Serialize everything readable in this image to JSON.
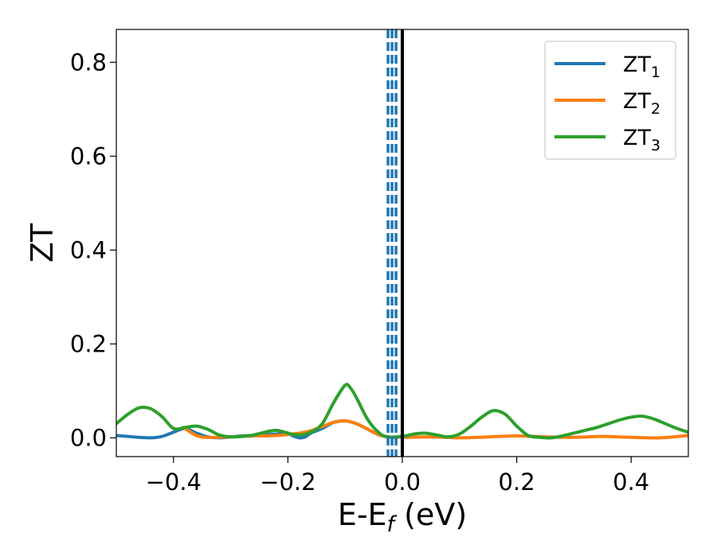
{
  "chart_data": {
    "type": "line",
    "xlabel": "E-E",
    "xlabel_sub": "f",
    "xlabel_unit": " (eV)",
    "ylabel": "ZT",
    "xlim": [
      -0.5,
      0.5
    ],
    "ylim": [
      -0.04,
      0.87
    ],
    "x_ticks": [
      -0.4,
      -0.2,
      0.0,
      0.2,
      0.4
    ],
    "x_tick_labels": [
      "−0.4",
      "−0.2",
      "0.0",
      "0.2",
      "0.4"
    ],
    "y_ticks": [
      0.0,
      0.2,
      0.4,
      0.6,
      0.8
    ],
    "y_tick_labels": [
      "0.0",
      "0.2",
      "0.4",
      "0.6",
      "0.8"
    ],
    "grid": false,
    "legend_position": "top-right",
    "legend": [
      {
        "base": "ZT",
        "sub": "1",
        "color": "#1f77b4"
      },
      {
        "base": "ZT",
        "sub": "2",
        "color": "#ff7f0e"
      },
      {
        "base": "ZT",
        "sub": "3",
        "color": "#2ca02c"
      }
    ],
    "vertical_lines": [
      {
        "x": -0.025,
        "style": "dashed",
        "color": "#1f77b4"
      },
      {
        "x": -0.018,
        "style": "dashed",
        "color": "#1f77b4"
      },
      {
        "x": -0.011,
        "style": "dashed",
        "color": "#1f77b4"
      },
      {
        "x": 0.0,
        "style": "solid",
        "color": "#000000"
      }
    ],
    "series": [
      {
        "color": "#1f77b4",
        "points": [
          [
            -0.5,
            0.005
          ],
          [
            -0.48,
            0.003
          ],
          [
            -0.46,
            0.001
          ],
          [
            -0.44,
            0.0
          ],
          [
            -0.42,
            0.003
          ],
          [
            -0.4,
            0.012
          ],
          [
            -0.38,
            0.02
          ],
          [
            -0.36,
            0.01
          ],
          [
            -0.34,
            0.002
          ],
          [
            -0.32,
            0.0
          ],
          [
            -0.3,
            0.002
          ],
          [
            -0.28,
            0.004
          ],
          [
            -0.26,
            0.005
          ],
          [
            -0.24,
            0.006
          ],
          [
            -0.22,
            0.008
          ],
          [
            -0.2,
            0.008
          ],
          [
            -0.19,
            0.004
          ],
          [
            -0.18,
            0.0
          ],
          [
            -0.17,
            0.002
          ],
          [
            -0.16,
            0.01
          ],
          [
            -0.14,
            0.02
          ],
          [
            -0.12,
            0.033
          ],
          [
            -0.1,
            0.036
          ],
          [
            -0.08,
            0.03
          ],
          [
            -0.06,
            0.018
          ],
          [
            -0.04,
            0.006
          ],
          [
            -0.025,
            0.002
          ]
        ]
      },
      {
        "color": "#ff7f0e",
        "points": [
          [
            -0.38,
            0.02
          ],
          [
            -0.36,
            0.005
          ],
          [
            -0.34,
            0.001
          ],
          [
            -0.3,
            0.002
          ],
          [
            -0.26,
            0.004
          ],
          [
            -0.22,
            0.005
          ],
          [
            -0.18,
            0.01
          ],
          [
            -0.16,
            0.015
          ],
          [
            -0.14,
            0.024
          ],
          [
            -0.12,
            0.033
          ],
          [
            -0.1,
            0.036
          ],
          [
            -0.08,
            0.03
          ],
          [
            -0.06,
            0.018
          ],
          [
            -0.04,
            0.006
          ],
          [
            -0.025,
            0.002
          ],
          [
            0.0,
            0.001
          ],
          [
            0.05,
            0.002
          ],
          [
            0.1,
            0.0
          ],
          [
            0.15,
            0.002
          ],
          [
            0.2,
            0.004
          ],
          [
            0.25,
            0.002
          ],
          [
            0.3,
            0.001
          ],
          [
            0.35,
            0.003
          ],
          [
            0.4,
            0.001
          ],
          [
            0.45,
            0.0
          ],
          [
            0.5,
            0.005
          ]
        ]
      },
      {
        "color": "#2ca02c",
        "points": [
          [
            -0.5,
            0.03
          ],
          [
            -0.48,
            0.05
          ],
          [
            -0.46,
            0.064
          ],
          [
            -0.44,
            0.062
          ],
          [
            -0.42,
            0.045
          ],
          [
            -0.4,
            0.02
          ],
          [
            -0.38,
            0.022
          ],
          [
            -0.36,
            0.025
          ],
          [
            -0.34,
            0.018
          ],
          [
            -0.32,
            0.006
          ],
          [
            -0.3,
            0.002
          ],
          [
            -0.28,
            0.003
          ],
          [
            -0.26,
            0.006
          ],
          [
            -0.24,
            0.012
          ],
          [
            -0.22,
            0.016
          ],
          [
            -0.2,
            0.01
          ],
          [
            -0.18,
            0.006
          ],
          [
            -0.16,
            0.012
          ],
          [
            -0.14,
            0.03
          ],
          [
            -0.12,
            0.075
          ],
          [
            -0.1,
            0.112
          ],
          [
            -0.09,
            0.105
          ],
          [
            -0.08,
            0.085
          ],
          [
            -0.06,
            0.038
          ],
          [
            -0.04,
            0.01
          ],
          [
            -0.025,
            0.002
          ],
          [
            0.0,
            0.003
          ],
          [
            0.02,
            0.008
          ],
          [
            0.04,
            0.01
          ],
          [
            0.06,
            0.006
          ],
          [
            0.08,
            0.002
          ],
          [
            0.1,
            0.008
          ],
          [
            0.12,
            0.025
          ],
          [
            0.14,
            0.045
          ],
          [
            0.16,
            0.058
          ],
          [
            0.18,
            0.05
          ],
          [
            0.2,
            0.025
          ],
          [
            0.22,
            0.005
          ],
          [
            0.24,
            0.001
          ],
          [
            0.26,
            0.0
          ],
          [
            0.28,
            0.004
          ],
          [
            0.3,
            0.01
          ],
          [
            0.32,
            0.016
          ],
          [
            0.34,
            0.022
          ],
          [
            0.36,
            0.03
          ],
          [
            0.38,
            0.038
          ],
          [
            0.4,
            0.044
          ],
          [
            0.42,
            0.046
          ],
          [
            0.44,
            0.04
          ],
          [
            0.46,
            0.03
          ],
          [
            0.48,
            0.02
          ],
          [
            0.5,
            0.012
          ]
        ]
      }
    ]
  }
}
